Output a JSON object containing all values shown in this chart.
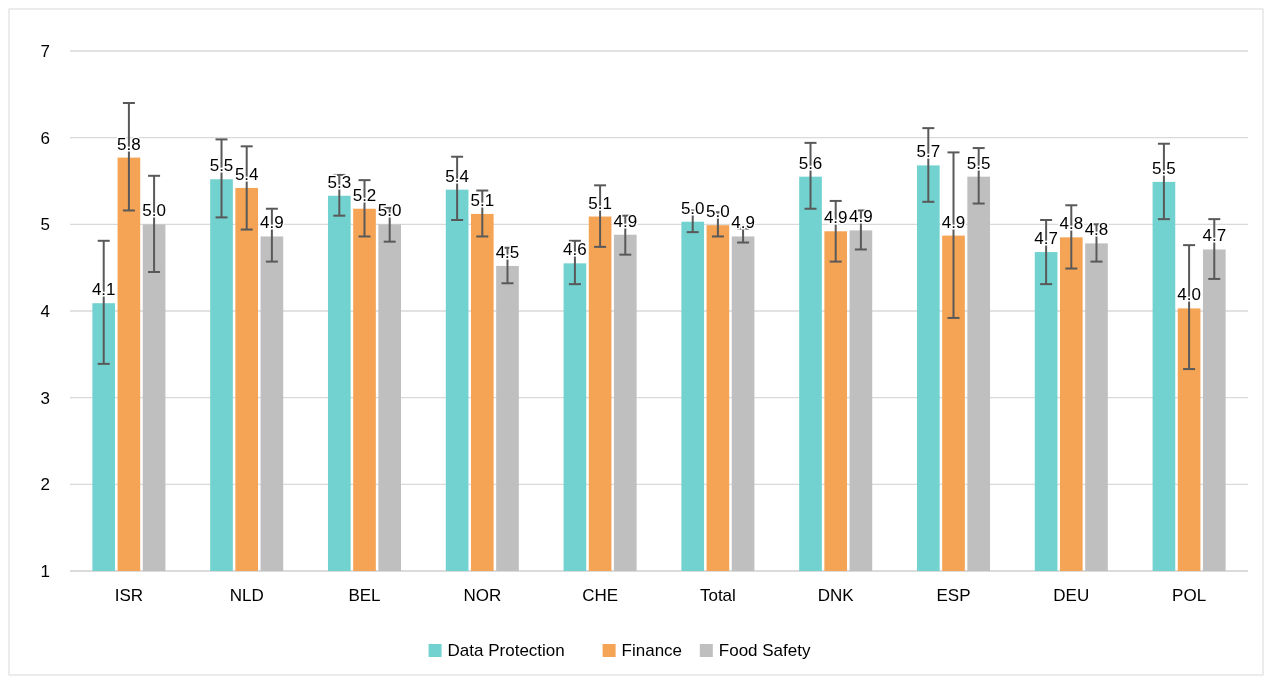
{
  "chart_data": {
    "type": "bar",
    "categories": [
      "ISR",
      "NLD",
      "BEL",
      "NOR",
      "CHE",
      "Total",
      "DNK",
      "ESP",
      "DEU",
      "POL"
    ],
    "series": [
      {
        "name": "Data Protection",
        "color": "#72d2cf",
        "values": [
          4.09,
          5.52,
          5.33,
          5.4,
          4.55,
          5.03,
          5.55,
          5.68,
          4.68,
          5.49
        ],
        "value_labels": [
          "4.1",
          "5.5",
          "5.3",
          "5.4",
          "4.6",
          "5.0",
          "5.6",
          "5.7",
          "4.7",
          "5.5"
        ],
        "errors": [
          [
            3.39,
            4.81
          ],
          [
            5.08,
            5.98
          ],
          [
            5.1,
            5.57
          ],
          [
            5.05,
            5.78
          ],
          [
            4.31,
            4.81
          ],
          [
            4.91,
            5.16
          ],
          [
            5.18,
            5.94
          ],
          [
            5.26,
            6.11
          ],
          [
            4.31,
            5.05
          ],
          [
            5.06,
            5.93
          ]
        ]
      },
      {
        "name": "Finance",
        "color": "#f5a455",
        "values": [
          5.77,
          5.42,
          5.18,
          5.12,
          5.09,
          4.99,
          4.92,
          4.87,
          4.85,
          4.03
        ],
        "value_labels": [
          "5.8",
          "5.4",
          "5.2",
          "5.1",
          "5.1",
          "5.0",
          "4.9",
          "4.9",
          "4.8",
          "4.0"
        ],
        "errors": [
          [
            5.16,
            6.4
          ],
          [
            4.94,
            5.9
          ],
          [
            4.86,
            5.51
          ],
          [
            4.86,
            5.39
          ],
          [
            4.74,
            5.45
          ],
          [
            4.86,
            5.14
          ],
          [
            4.57,
            5.27
          ],
          [
            3.92,
            5.83
          ],
          [
            4.49,
            5.22
          ],
          [
            3.33,
            4.76
          ]
        ]
      },
      {
        "name": "Food Safety",
        "color": "#bfbfbf",
        "values": [
          5.0,
          4.86,
          5.0,
          4.52,
          4.88,
          4.86,
          4.93,
          5.55,
          4.78,
          4.71
        ],
        "value_labels": [
          "5.0",
          "4.9",
          "5.0",
          "4.5",
          "4.9",
          "4.9",
          "4.9",
          "5.5",
          "4.8",
          "4.7"
        ],
        "errors": [
          [
            4.45,
            5.56
          ],
          [
            4.57,
            5.18
          ],
          [
            4.8,
            5.19
          ],
          [
            4.32,
            4.73
          ],
          [
            4.65,
            5.1
          ],
          [
            4.79,
            4.95
          ],
          [
            4.71,
            5.16
          ],
          [
            5.24,
            5.88
          ],
          [
            4.57,
            5.0
          ],
          [
            4.37,
            5.06
          ]
        ]
      }
    ],
    "ylim": [
      1,
      7
    ],
    "yticks": [
      1,
      2,
      3,
      4,
      5,
      6,
      7
    ],
    "grid": "y",
    "legend": "bottom"
  }
}
